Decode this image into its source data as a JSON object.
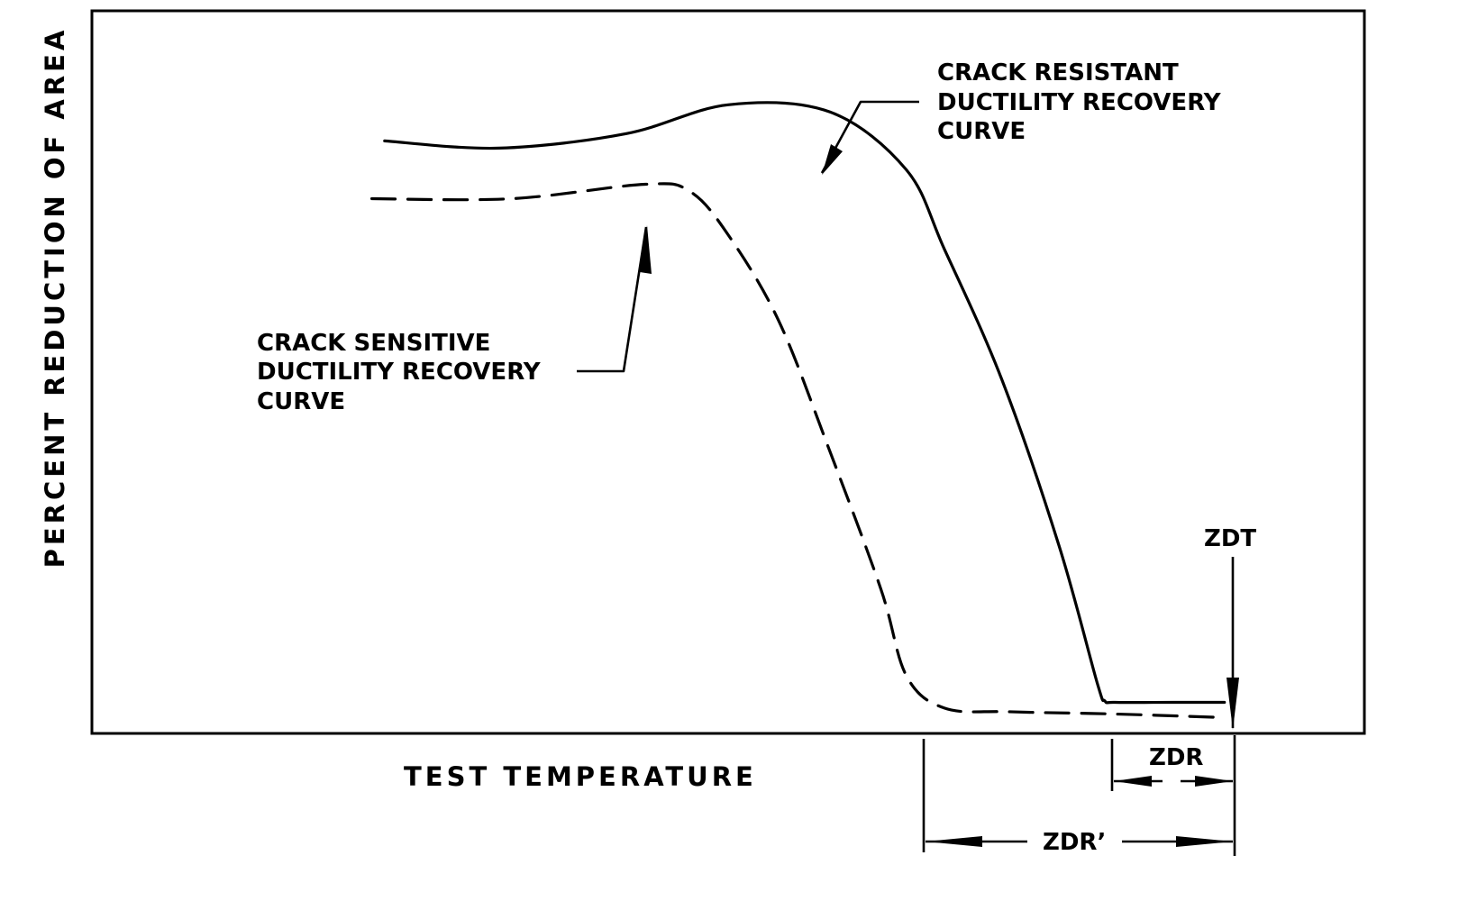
{
  "chart_data": {
    "type": "line",
    "xlabel": "TEST TEMPERATURE",
    "ylabel": "PERCENT REDUCTION OF AREA",
    "grid": false,
    "series": [
      {
        "name": "CRACK RESISTANT DUCTILITY RECOVERY CURVE",
        "style": "solid",
        "x": [
          0.23,
          0.32,
          0.42,
          0.5,
          0.58,
          0.64,
          0.67,
          0.715,
          0.76,
          0.79,
          0.796,
          0.804,
          0.85,
          0.89
        ],
        "y": [
          0.82,
          0.81,
          0.83,
          0.87,
          0.86,
          0.78,
          0.67,
          0.49,
          0.26,
          0.07,
          0.045,
          0.043,
          0.043,
          0.043
        ]
      },
      {
        "name": "CRACK SENSITIVE DUCTILITY RECOVERY CURVE",
        "style": "dashed",
        "x": [
          0.22,
          0.33,
          0.435,
          0.47,
          0.5,
          0.54,
          0.58,
          0.62,
          0.64,
          0.67,
          0.72,
          0.8,
          0.89
        ],
        "y": [
          0.74,
          0.74,
          0.76,
          0.75,
          0.69,
          0.57,
          0.39,
          0.2,
          0.08,
          0.035,
          0.03,
          0.027,
          0.022
        ]
      }
    ],
    "annotations": {
      "resistant_label": [
        "CRACK RESISTANT",
        "DUCTILITY RECOVERY",
        "CURVE"
      ],
      "sensitive_label": [
        "CRACK SENSITIVE",
        "DUCTILITY RECOVERY",
        "CURVE"
      ],
      "zdt": "ZDT",
      "zdr": "ZDR",
      "zdr_prime": "ZDR’"
    }
  }
}
